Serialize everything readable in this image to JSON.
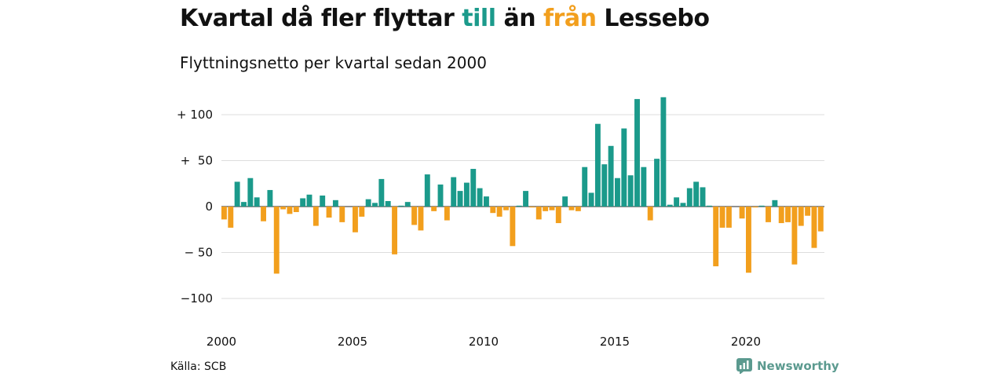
{
  "header": {
    "title_part1": "Kvartal då fler flyttar ",
    "title_till": "till",
    "title_part2": " än ",
    "title_fran": "från",
    "title_part3": " Lessebo",
    "subtitle": "Flyttningsnetto per kvartal sedan 2000"
  },
  "footer": {
    "source": "Källa: SCB",
    "brand": "Newsworthy",
    "brand_icon": "newsworthy-logo-icon"
  },
  "colors": {
    "positive": "#1b9a8b",
    "negative": "#f29f1d",
    "grid": "#dddddd"
  },
  "chart_data": {
    "type": "bar",
    "title": "Kvartal då fler flyttar till än från Lessebo",
    "subtitle": "Flyttningsnetto per kvartal sedan 2000",
    "x_start": "2000 Q1",
    "x_ticks": [
      "2000",
      "2005",
      "2010",
      "2015",
      "2020"
    ],
    "y_ticks": [
      {
        "value": 100,
        "label": "+ 100"
      },
      {
        "value": 50,
        "label": "+  50"
      },
      {
        "value": 0,
        "label": "0"
      },
      {
        "value": -50,
        "label": "− 50"
      },
      {
        "value": -100,
        "label": "−100"
      }
    ],
    "ylim": [
      -120,
      120
    ],
    "grid": true,
    "legend": "none",
    "values": [
      -14,
      -23,
      27,
      5,
      31,
      10,
      -16,
      18,
      -73,
      -3,
      -8,
      -6,
      9,
      13,
      -21,
      12,
      -12,
      7,
      -17,
      0,
      -28,
      -11,
      8,
      4,
      30,
      6,
      -52,
      1,
      5,
      -20,
      -26,
      35,
      -5,
      24,
      -15,
      32,
      17,
      26,
      41,
      20,
      11,
      -7,
      -11,
      -4,
      -43,
      1,
      17,
      -1,
      -14,
      -5,
      -4,
      -18,
      11,
      -4,
      -5,
      43,
      15,
      90,
      46,
      66,
      31,
      85,
      34,
      117,
      43,
      -15,
      52,
      119,
      2,
      10,
      4,
      20,
      27,
      21,
      1,
      -65,
      -23,
      -23,
      0,
      -13,
      -72,
      -1,
      1,
      -17,
      7,
      -18,
      -17,
      -63,
      -21,
      -10,
      -45,
      -27
    ]
  }
}
